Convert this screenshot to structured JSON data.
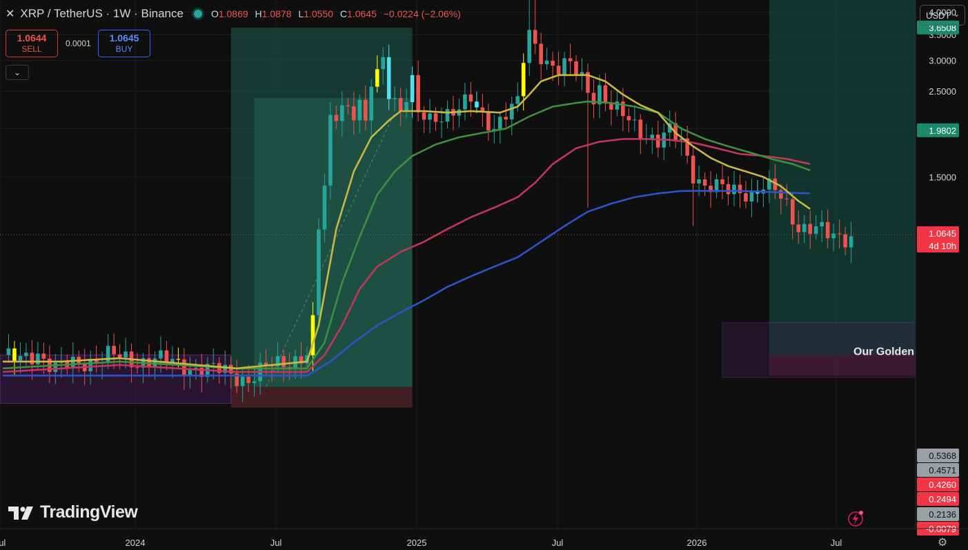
{
  "header": {
    "title": "XRP / TetherUS · 1W · Binance",
    "open_label": "O",
    "open": "1.0869",
    "high_label": "H",
    "high": "1.0878",
    "low_label": "L",
    "low": "1.0550",
    "close_label": "C",
    "close": "1.0645",
    "change": "−0.0224 (−2.06%)"
  },
  "trade": {
    "sell_price": "1.0644",
    "sell_label": "SELL",
    "spread": "0.0001",
    "buy_price": "1.0645",
    "buy_label": "BUY"
  },
  "currency_selector": "USDT",
  "brand": "TradingView",
  "colors": {
    "up": "#26a69a",
    "down": "#ef5350",
    "highlight": "#ffff00",
    "cyan": "#53e0f0",
    "ma_yellow": "#c9b940",
    "ma_green": "#3f8f3f",
    "ma_red": "#c2365a",
    "ma_blue": "#2e54c8"
  },
  "chart_data": {
    "type": "candlestick",
    "timeframe": "1W",
    "y_scale": "log",
    "ylim": [
      0.185,
      4.3
    ],
    "price_axis_ticks": [
      "4.0000",
      "3.5000",
      "3.0000",
      "2.5000",
      "2.0000",
      "1.5000"
    ],
    "x_axis_ticks": [
      "Jul",
      "2024",
      "Jul",
      "2025",
      "Jul",
      "2026",
      "Jul"
    ],
    "price_labels": [
      {
        "value": "3.6508",
        "style": "green"
      },
      {
        "value": "1.9802",
        "style": "green"
      },
      {
        "value": "1.0645",
        "style": "red",
        "sub": "4d 10h"
      },
      {
        "value": "0.5368",
        "style": "gray"
      },
      {
        "value": "0.4571",
        "style": "gray"
      },
      {
        "value": "0.4260",
        "style": "red"
      },
      {
        "value": "0.2494",
        "style": "red"
      },
      {
        "value": "0.2136",
        "style": "gray"
      },
      {
        "value": "-0.0079",
        "style": "red"
      }
    ],
    "last_price": 1.0645,
    "annotation": "Our Golden",
    "position_boxes": [
      {
        "from": "2024-05",
        "to": "2024-12",
        "top_price": 3.65,
        "entry": 0.43,
        "bottom": 0.38
      },
      {
        "from": "2026-03",
        "to": "2026-10",
        "top_price": 4.3,
        "entry": 0.52,
        "bottom": 0.46
      }
    ],
    "anchors": {
      "close": [
        [
          0,
          0.52
        ],
        [
          3,
          0.5
        ],
        [
          6,
          0.53
        ],
        [
          9,
          0.48
        ],
        [
          12,
          0.49
        ],
        [
          18,
          0.52
        ],
        [
          22,
          0.5
        ],
        [
          26,
          0.51
        ],
        [
          30,
          0.49
        ],
        [
          34,
          0.48
        ],
        [
          38,
          0.47
        ],
        [
          42,
          0.45
        ],
        [
          45,
          0.48
        ],
        [
          48,
          0.5
        ],
        [
          52,
          0.52
        ],
        [
          53,
          0.62
        ],
        [
          54,
          1.1
        ],
        [
          55,
          1.4
        ],
        [
          56,
          2.1
        ],
        [
          58,
          2.35
        ],
        [
          60,
          2.2
        ],
        [
          61,
          2.3
        ],
        [
          62,
          2.0
        ],
        [
          63,
          2.6
        ],
        [
          64,
          2.75
        ],
        [
          65,
          3.05
        ],
        [
          66,
          2.55
        ],
        [
          68,
          2.25
        ],
        [
          70,
          2.6
        ],
        [
          71,
          2.15
        ],
        [
          73,
          2.1
        ],
        [
          75,
          2.2
        ],
        [
          78,
          2.25
        ],
        [
          80,
          2.35
        ],
        [
          82,
          2.15
        ],
        [
          84,
          2.05
        ],
        [
          86,
          2.2
        ],
        [
          88,
          2.3
        ],
        [
          89,
          3.0
        ],
        [
          90,
          3.5
        ],
        [
          91,
          3.3
        ],
        [
          93,
          3.0
        ],
        [
          95,
          2.85
        ],
        [
          97,
          2.9
        ],
        [
          99,
          2.7
        ],
        [
          100,
          2.55
        ],
        [
          101,
          2.45
        ],
        [
          102,
          2.55
        ],
        [
          104,
          2.25
        ],
        [
          106,
          2.15
        ],
        [
          108,
          2.05
        ],
        [
          110,
          1.95
        ],
        [
          112,
          1.85
        ],
        [
          114,
          1.95
        ],
        [
          116,
          1.85
        ],
        [
          118,
          1.55
        ],
        [
          120,
          1.42
        ],
        [
          122,
          1.4
        ],
        [
          124,
          1.38
        ],
        [
          126,
          1.4
        ],
        [
          128,
          1.36
        ],
        [
          130,
          1.4
        ],
        [
          132,
          1.38
        ],
        [
          134,
          1.28
        ],
        [
          136,
          1.12
        ],
        [
          138,
          1.1
        ],
        [
          140,
          1.08
        ],
        [
          141,
          1.06
        ]
      ],
      "ma_yellow": [
        [
          0,
          0.5
        ],
        [
          10,
          0.5
        ],
        [
          20,
          0.51
        ],
        [
          40,
          0.48
        ],
        [
          52,
          0.5
        ],
        [
          54,
          0.62
        ],
        [
          57,
          1.1
        ],
        [
          60,
          1.55
        ],
        [
          63,
          1.9
        ],
        [
          66,
          2.1
        ],
        [
          68,
          2.22
        ],
        [
          72,
          2.22
        ],
        [
          76,
          2.2
        ],
        [
          80,
          2.22
        ],
        [
          85,
          2.2
        ],
        [
          88,
          2.28
        ],
        [
          90,
          2.45
        ],
        [
          92,
          2.65
        ],
        [
          95,
          2.75
        ],
        [
          98,
          2.75
        ],
        [
          100,
          2.75
        ],
        [
          103,
          2.65
        ],
        [
          106,
          2.45
        ],
        [
          109,
          2.3
        ],
        [
          112,
          2.2
        ],
        [
          115,
          1.95
        ],
        [
          118,
          1.8
        ],
        [
          121,
          1.68
        ],
        [
          124,
          1.6
        ],
        [
          127,
          1.55
        ],
        [
          130,
          1.5
        ],
        [
          133,
          1.42
        ],
        [
          136,
          1.3
        ],
        [
          138,
          1.24
        ]
      ],
      "ma_green": [
        [
          0,
          0.48
        ],
        [
          20,
          0.5
        ],
        [
          40,
          0.48
        ],
        [
          52,
          0.48
        ],
        [
          55,
          0.56
        ],
        [
          58,
          0.8
        ],
        [
          61,
          1.05
        ],
        [
          64,
          1.35
        ],
        [
          67,
          1.55
        ],
        [
          70,
          1.7
        ],
        [
          74,
          1.82
        ],
        [
          78,
          1.9
        ],
        [
          82,
          1.95
        ],
        [
          86,
          2.0
        ],
        [
          90,
          2.15
        ],
        [
          94,
          2.28
        ],
        [
          98,
          2.33
        ],
        [
          100,
          2.35
        ],
        [
          104,
          2.33
        ],
        [
          108,
          2.28
        ],
        [
          112,
          2.2
        ],
        [
          116,
          2.0
        ],
        [
          120,
          1.88
        ],
        [
          124,
          1.8
        ],
        [
          128,
          1.73
        ],
        [
          132,
          1.66
        ],
        [
          135,
          1.62
        ],
        [
          138,
          1.56
        ]
      ],
      "ma_red": [
        [
          0,
          0.47
        ],
        [
          20,
          0.49
        ],
        [
          40,
          0.47
        ],
        [
          52,
          0.47
        ],
        [
          55,
          0.52
        ],
        [
          58,
          0.62
        ],
        [
          61,
          0.77
        ],
        [
          64,
          0.88
        ],
        [
          68,
          0.96
        ],
        [
          72,
          1.02
        ],
        [
          76,
          1.1
        ],
        [
          80,
          1.18
        ],
        [
          84,
          1.25
        ],
        [
          88,
          1.33
        ],
        [
          91,
          1.45
        ],
        [
          94,
          1.62
        ],
        [
          98,
          1.78
        ],
        [
          102,
          1.85
        ],
        [
          106,
          1.88
        ],
        [
          110,
          1.88
        ],
        [
          114,
          1.87
        ],
        [
          118,
          1.84
        ],
        [
          122,
          1.78
        ],
        [
          126,
          1.72
        ],
        [
          130,
          1.7
        ],
        [
          134,
          1.67
        ],
        [
          138,
          1.62
        ]
      ],
      "ma_blue": [
        [
          0,
          0.46
        ],
        [
          20,
          0.46
        ],
        [
          40,
          0.46
        ],
        [
          52,
          0.46
        ],
        [
          56,
          0.5
        ],
        [
          60,
          0.56
        ],
        [
          64,
          0.62
        ],
        [
          68,
          0.67
        ],
        [
          72,
          0.72
        ],
        [
          76,
          0.78
        ],
        [
          80,
          0.83
        ],
        [
          84,
          0.88
        ],
        [
          88,
          0.93
        ],
        [
          92,
          1.02
        ],
        [
          96,
          1.12
        ],
        [
          100,
          1.22
        ],
        [
          104,
          1.28
        ],
        [
          108,
          1.33
        ],
        [
          112,
          1.36
        ],
        [
          116,
          1.38
        ],
        [
          120,
          1.38
        ],
        [
          126,
          1.38
        ],
        [
          132,
          1.37
        ],
        [
          138,
          1.36
        ]
      ]
    }
  }
}
